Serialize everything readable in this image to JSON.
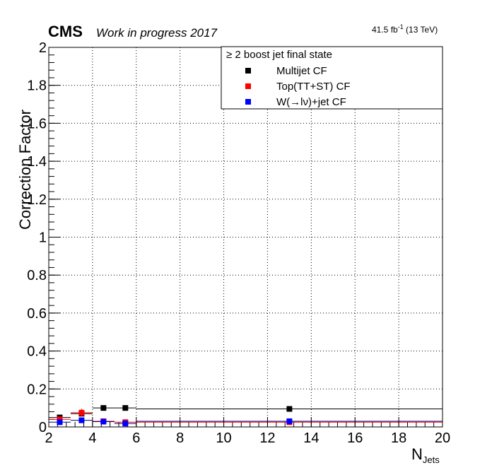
{
  "header": {
    "experiment": "CMS",
    "status": "Work in progress 2017",
    "lumi_value": "41.5 fb",
    "lumi_exp": "-1",
    "lumi_energy": " (13 TeV)"
  },
  "legend": {
    "header": "≥ 2 boost jet final state"
  },
  "chart_data": {
    "type": "scatter",
    "xlabel_main": "N",
    "xlabel_sub": "Jets",
    "ylabel": "Correction Factor",
    "xlim": [
      2,
      20
    ],
    "ylim": [
      0,
      2
    ],
    "x_ticks": [
      "2",
      "4",
      "6",
      "8",
      "10",
      "12",
      "14",
      "16",
      "18",
      "20"
    ],
    "y_ticks": [
      "0",
      "0.2",
      "0.4",
      "0.6",
      "0.8",
      "1",
      "1.2",
      "1.4",
      "1.6",
      "1.8",
      "2"
    ],
    "grid": true,
    "legend_position": "top-right",
    "series": [
      {
        "name": "Multijet CF",
        "color": "#000000",
        "line_color": "#000000",
        "points": [
          {
            "x": 2.5,
            "xlo": 2,
            "xhi": 3,
            "y": 0.05
          },
          {
            "x": 3.5,
            "xlo": 3,
            "xhi": 4,
            "y": 0.07
          },
          {
            "x": 4.5,
            "xlo": 4,
            "xhi": 5,
            "y": 0.1
          },
          {
            "x": 5.5,
            "xlo": 5,
            "xhi": 6,
            "y": 0.1
          },
          {
            "x": 13,
            "xlo": 6,
            "xhi": 20,
            "y": 0.095
          }
        ]
      },
      {
        "name": "Top(TT+ST) CF",
        "color": "#ff0000",
        "line_color": "#ff0000",
        "points": [
          {
            "x": 2.5,
            "xlo": 2,
            "xhi": 3,
            "y": 0.04
          },
          {
            "x": 3.5,
            "xlo": 3,
            "xhi": 4,
            "y": 0.075,
            "err": 0.02
          },
          {
            "x": 4.5,
            "xlo": 4,
            "xhi": 5,
            "y": 0.03
          },
          {
            "x": 5.5,
            "xlo": 5,
            "xhi": 6,
            "y": 0.025
          },
          {
            "x": 13,
            "xlo": 6,
            "xhi": 20,
            "y": 0.025
          }
        ]
      },
      {
        "name": "W(→lν)+jet CF",
        "color": "#0000ff",
        "line_color": "#000080",
        "points": [
          {
            "x": 2.5,
            "xlo": 2,
            "xhi": 3,
            "y": 0.025
          },
          {
            "x": 3.5,
            "xlo": 3,
            "xhi": 4,
            "y": 0.035
          },
          {
            "x": 4.5,
            "xlo": 4,
            "xhi": 5,
            "y": 0.028
          },
          {
            "x": 5.5,
            "xlo": 5,
            "xhi": 6,
            "y": 0.018
          },
          {
            "x": 13,
            "xlo": 6,
            "xhi": 20,
            "y": 0.03
          }
        ]
      }
    ]
  }
}
